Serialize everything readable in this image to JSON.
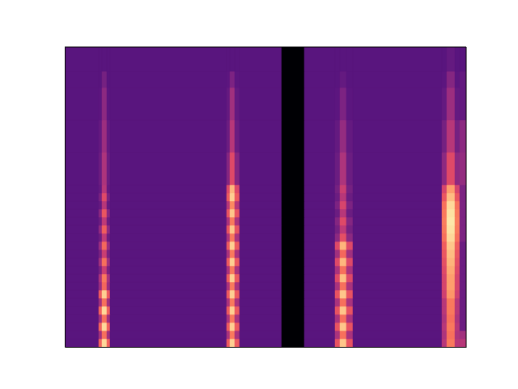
{
  "chart_data": {
    "type": "heatmap",
    "color": "magma",
    "tick_labels": false,
    "xlim": [
      0,
      248
    ],
    "ylim": [
      0,
      185
    ],
    "zlim": [
      0,
      1
    ],
    "x_edges": [
      0,
      21,
      23,
      26,
      28,
      100,
      102,
      105,
      108,
      134,
      148,
      167,
      170,
      174,
      178,
      233,
      236,
      241,
      244,
      248
    ],
    "y_edges": [
      0,
      5,
      10,
      15,
      20,
      25,
      30,
      35,
      40,
      45,
      50,
      55,
      60,
      65,
      70,
      75,
      80,
      85,
      90,
      95,
      100,
      120,
      140,
      160,
      170,
      185
    ],
    "values": [
      [
        0.27,
        0.67,
        0.92,
        0.67,
        0.27,
        0.65,
        0.9,
        0.65,
        0.27,
        0,
        0.27,
        0.63,
        0.88,
        0.63,
        0.27,
        0.5,
        0.72,
        0.5,
        0.5
      ],
      [
        0.27,
        0.45,
        0.7,
        0.45,
        0.27,
        0.47,
        0.72,
        0.47,
        0.27,
        0,
        0.27,
        0.47,
        0.7,
        0.47,
        0.27,
        0.48,
        0.7,
        0.48,
        0.45
      ],
      [
        0.27,
        0.67,
        0.92,
        0.67,
        0.27,
        0.65,
        0.9,
        0.65,
        0.27,
        0,
        0.27,
        0.63,
        0.88,
        0.63,
        0.27,
        0.5,
        0.72,
        0.5,
        0.32
      ],
      [
        0.27,
        0.45,
        0.7,
        0.45,
        0.27,
        0.47,
        0.72,
        0.47,
        0.27,
        0,
        0.27,
        0.47,
        0.7,
        0.47,
        0.27,
        0.48,
        0.7,
        0.48,
        0.32
      ],
      [
        0.27,
        0.67,
        0.92,
        0.67,
        0.27,
        0.65,
        0.9,
        0.65,
        0.27,
        0,
        0.27,
        0.63,
        0.88,
        0.63,
        0.27,
        0.5,
        0.72,
        0.5,
        0.32
      ],
      [
        0.27,
        0.45,
        0.7,
        0.45,
        0.27,
        0.47,
        0.72,
        0.47,
        0.27,
        0,
        0.27,
        0.47,
        0.7,
        0.47,
        0.27,
        0.5,
        0.72,
        0.5,
        0.32
      ],
      [
        0.27,
        0.65,
        0.9,
        0.65,
        0.27,
        0.65,
        0.9,
        0.65,
        0.27,
        0,
        0.27,
        0.63,
        0.88,
        0.63,
        0.27,
        0.56,
        0.78,
        0.56,
        0.32
      ],
      [
        0.27,
        0.43,
        0.68,
        0.43,
        0.27,
        0.47,
        0.72,
        0.47,
        0.27,
        0,
        0.27,
        0.47,
        0.7,
        0.47,
        0.27,
        0.58,
        0.8,
        0.58,
        0.32
      ],
      [
        0.27,
        0.47,
        0.72,
        0.47,
        0.27,
        0.65,
        0.9,
        0.65,
        0.27,
        0,
        0.27,
        0.6,
        0.86,
        0.6,
        0.27,
        0.58,
        0.8,
        0.58,
        0.32
      ],
      [
        0.27,
        0.35,
        0.55,
        0.35,
        0.27,
        0.47,
        0.72,
        0.47,
        0.27,
        0,
        0.27,
        0.47,
        0.7,
        0.47,
        0.27,
        0.6,
        0.82,
        0.6,
        0.32
      ],
      [
        0.27,
        0.45,
        0.7,
        0.45,
        0.27,
        0.65,
        0.9,
        0.65,
        0.27,
        0,
        0.27,
        0.6,
        0.85,
        0.6,
        0.27,
        0.62,
        0.84,
        0.62,
        0.32
      ],
      [
        0.27,
        0.35,
        0.55,
        0.35,
        0.27,
        0.47,
        0.72,
        0.47,
        0.27,
        0,
        0.27,
        0.45,
        0.68,
        0.45,
        0.27,
        0.64,
        0.86,
        0.64,
        0.32
      ],
      [
        0.27,
        0.43,
        0.68,
        0.43,
        0.27,
        0.65,
        0.9,
        0.65,
        0.27,
        0,
        0.27,
        0.6,
        0.84,
        0.6,
        0.27,
        0.66,
        0.88,
        0.66,
        0.32
      ],
      [
        0.27,
        0.32,
        0.52,
        0.32,
        0.27,
        0.47,
        0.72,
        0.47,
        0.27,
        0,
        0.27,
        0.4,
        0.62,
        0.4,
        0.27,
        0.7,
        0.92,
        0.7,
        0.36
      ],
      [
        0.27,
        0.41,
        0.66,
        0.41,
        0.27,
        0.63,
        0.88,
        0.63,
        0.27,
        0,
        0.27,
        0.34,
        0.52,
        0.34,
        0.27,
        0.72,
        0.94,
        0.72,
        0.36
      ],
      [
        0.27,
        0.32,
        0.52,
        0.32,
        0.27,
        0.47,
        0.72,
        0.47,
        0.27,
        0,
        0.27,
        0.38,
        0.6,
        0.38,
        0.27,
        0.73,
        0.95,
        0.73,
        0.36
      ],
      [
        0.27,
        0.39,
        0.64,
        0.39,
        0.27,
        0.63,
        0.88,
        0.63,
        0.27,
        0,
        0.27,
        0.32,
        0.5,
        0.32,
        0.27,
        0.72,
        0.94,
        0.72,
        0.36
      ],
      [
        0.27,
        0.3,
        0.5,
        0.3,
        0.27,
        0.5,
        0.75,
        0.5,
        0.27,
        0,
        0.27,
        0.36,
        0.58,
        0.36,
        0.27,
        0.7,
        0.92,
        0.7,
        0.36
      ],
      [
        0.27,
        0.35,
        0.6,
        0.35,
        0.27,
        0.65,
        0.9,
        0.65,
        0.27,
        0,
        0.27,
        0.32,
        0.5,
        0.32,
        0.27,
        0.64,
        0.86,
        0.64,
        0.36
      ],
      [
        0.27,
        0.3,
        0.5,
        0.3,
        0.27,
        0.6,
        0.85,
        0.6,
        0.27,
        0,
        0.27,
        0.34,
        0.55,
        0.34,
        0.27,
        0.58,
        0.8,
        0.58,
        0.36
      ],
      [
        0.27,
        0.32,
        0.48,
        0.32,
        0.27,
        0.38,
        0.6,
        0.38,
        0.27,
        0,
        0.27,
        0.32,
        0.48,
        0.32,
        0.27,
        0.4,
        0.6,
        0.4,
        0.42
      ],
      [
        0.27,
        0.3,
        0.44,
        0.3,
        0.27,
        0.32,
        0.5,
        0.32,
        0.27,
        0,
        0.27,
        0.3,
        0.42,
        0.3,
        0.27,
        0.34,
        0.5,
        0.34,
        0.4
      ],
      [
        0.27,
        0.28,
        0.4,
        0.28,
        0.27,
        0.3,
        0.45,
        0.3,
        0.27,
        0,
        0.27,
        0.28,
        0.36,
        0.28,
        0.27,
        0.3,
        0.44,
        0.3,
        0.3
      ],
      [
        0.27,
        0.27,
        0.34,
        0.27,
        0.27,
        0.28,
        0.36,
        0.28,
        0.27,
        0,
        0.27,
        0.27,
        0.3,
        0.27,
        0.27,
        0.28,
        0.38,
        0.28,
        0.3
      ],
      [
        0.27,
        0.27,
        0.27,
        0.27,
        0.27,
        0.27,
        0.27,
        0.27,
        0.27,
        0,
        0.27,
        0.27,
        0.27,
        0.27,
        0.27,
        0.27,
        0.3,
        0.27,
        0.27
      ]
    ]
  }
}
